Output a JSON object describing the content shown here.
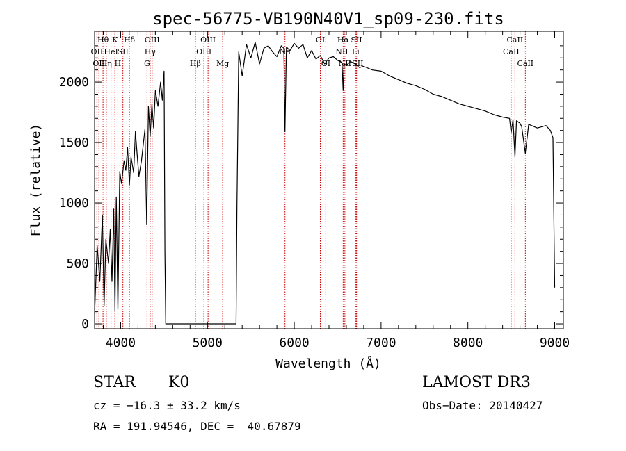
{
  "chart_data": {
    "type": "line",
    "title": "spec-56775-VB190N40V1_sp09-230.fits",
    "xlabel": "Wavelength (Å)",
    "ylabel": "Flux (relative)",
    "xlim": [
      3700,
      9100
    ],
    "ylim": [
      -40,
      2420
    ],
    "xticks": [
      4000,
      5000,
      6000,
      7000,
      8000,
      9000
    ],
    "yticks": [
      0,
      500,
      1000,
      1500,
      2000
    ],
    "series": [
      {
        "name": "spectrum",
        "x": [
          3700,
          3730,
          3760,
          3790,
          3810,
          3830,
          3860,
          3880,
          3900,
          3920,
          3935,
          3950,
          3968,
          3990,
          4010,
          4040,
          4060,
          4080,
          4101,
          4120,
          4150,
          4170,
          4190,
          4210,
          4240,
          4260,
          4280,
          4300,
          4320,
          4340,
          4360,
          4380,
          4400,
          4430,
          4460,
          4480,
          4500,
          4510,
          4520,
          5330,
          5340,
          5360,
          5400,
          5450,
          5500,
          5550,
          5600,
          5650,
          5700,
          5750,
          5800,
          5850,
          5880,
          5893,
          5910,
          5950,
          6000,
          6050,
          6100,
          6150,
          6200,
          6250,
          6300,
          6350,
          6400,
          6450,
          6500,
          6550,
          6563,
          6575,
          6600,
          6650,
          6700,
          6750,
          6800,
          6900,
          7000,
          7100,
          7200,
          7300,
          7400,
          7500,
          7600,
          7700,
          7800,
          7900,
          8000,
          8100,
          8200,
          8300,
          8400,
          8480,
          8498,
          8520,
          8542,
          8560,
          8600,
          8620,
          8662,
          8700,
          8800,
          8900,
          8950,
          8980,
          9000
        ],
        "values": [
          80,
          650,
          350,
          900,
          150,
          700,
          500,
          780,
          350,
          950,
          110,
          1050,
          120,
          1260,
          1160,
          1350,
          1270,
          1460,
          1150,
          1380,
          1250,
          1590,
          1400,
          1220,
          1350,
          1480,
          1610,
          820,
          1800,
          1550,
          1820,
          1620,
          1930,
          1800,
          2000,
          1850,
          2090,
          600,
          0,
          0,
          980,
          2250,
          2050,
          2310,
          2200,
          2330,
          2150,
          2280,
          2300,
          2250,
          2210,
          2300,
          2280,
          1590,
          2290,
          2260,
          2320,
          2280,
          2310,
          2200,
          2260,
          2190,
          2220,
          2150,
          2200,
          2210,
          2180,
          2160,
          1930,
          2150,
          2140,
          2170,
          2150,
          2120,
          2130,
          2100,
          2090,
          2050,
          2020,
          1990,
          1970,
          1940,
          1900,
          1880,
          1850,
          1820,
          1800,
          1780,
          1760,
          1730,
          1710,
          1700,
          1580,
          1690,
          1380,
          1680,
          1660,
          1630,
          1410,
          1650,
          1620,
          1640,
          1600,
          1540,
          300
        ]
      }
    ],
    "lines": [
      {
        "x": 3727,
        "label": "OII",
        "row": 1
      },
      {
        "x": 3750,
        "label": "OII",
        "row": 2
      },
      {
        "x": 3797,
        "label": "Hθ",
        "row": 0
      },
      {
        "x": 3835,
        "label": "Hη",
        "row": 2
      },
      {
        "x": 3889,
        "label": "HeI",
        "row": 1
      },
      {
        "x": 3934,
        "label": "K",
        "row": 0
      },
      {
        "x": 3968,
        "label": "H",
        "row": 2
      },
      {
        "x": 4026,
        "label": "SII",
        "row": 1
      },
      {
        "x": 4101,
        "label": "Hδ",
        "row": 0
      },
      {
        "x": 4304,
        "label": "G",
        "row": 2
      },
      {
        "x": 4340,
        "label": "Hγ",
        "row": 1
      },
      {
        "x": 4363,
        "label": "OIII",
        "row": 0
      },
      {
        "x": 4861,
        "label": "Hβ",
        "row": 2
      },
      {
        "x": 4959,
        "label": "OIII",
        "row": 1
      },
      {
        "x": 5007,
        "label": "OIII",
        "row": 0
      },
      {
        "x": 5175,
        "label": "Mg",
        "row": 2
      },
      {
        "x": 5893,
        "label": "Na",
        "row": 1
      },
      {
        "x": 6300,
        "label": "OI",
        "row": 0
      },
      {
        "x": 6363,
        "label": "OI",
        "row": 2
      },
      {
        "x": 6548,
        "label": "NII",
        "row": 1
      },
      {
        "x": 6563,
        "label": "Hα",
        "row": 0
      },
      {
        "x": 6583,
        "label": "NII",
        "row": 2
      },
      {
        "x": 6707,
        "label": "Li",
        "row": 1
      },
      {
        "x": 6716,
        "label": "SII",
        "row": 0
      },
      {
        "x": 6731,
        "label": "SII",
        "row": 2
      },
      {
        "x": 8498,
        "label": "CaII",
        "row": 1
      },
      {
        "x": 8542,
        "label": "CaII",
        "row": 0
      },
      {
        "x": 8662,
        "label": "CaII",
        "row": 2
      }
    ]
  },
  "info": {
    "class_label": "STAR",
    "subclass_label": "K0",
    "survey_label": "LAMOST DR3",
    "redshift_text": "cz = −16.3 ± 33.2 km/s",
    "obs_date_text": "Obs−Date: 20140427",
    "coords_text": "RA = 191.94546, DEC =  40.67879"
  },
  "colors": {
    "axis": "#000000",
    "line_marker": "#cc0000",
    "spectrum": "#000000",
    "background": "#ffffff"
  }
}
